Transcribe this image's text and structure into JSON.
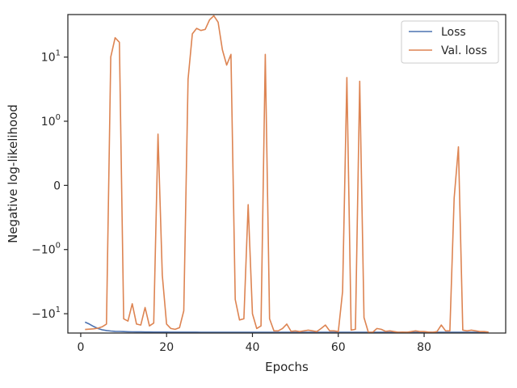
{
  "chart_data": {
    "type": "line",
    "title": "",
    "xlabel": "Epochs",
    "ylabel": "Negative log-likelihood",
    "yscale": "symlog",
    "xlim": [
      -3,
      99
    ],
    "ylim": [
      -20,
      46
    ],
    "x_ticks": [
      {
        "value": 0,
        "label": "0"
      },
      {
        "value": 20,
        "label": "20"
      },
      {
        "value": 40,
        "label": "40"
      },
      {
        "value": 60,
        "label": "60"
      },
      {
        "value": 80,
        "label": "80"
      }
    ],
    "y_ticks": [
      {
        "value": 10,
        "label": "10¹",
        "base": "10",
        "exp": "1",
        "sign": ""
      },
      {
        "value": 1,
        "label": "10⁰",
        "base": "10",
        "exp": "0",
        "sign": ""
      },
      {
        "value": 0,
        "label": "0",
        "base": "0",
        "exp": "",
        "sign": ""
      },
      {
        "value": -1,
        "label": "−10⁰",
        "base": "10",
        "exp": "0",
        "sign": "−"
      },
      {
        "value": -10,
        "label": "−10¹",
        "base": "10",
        "exp": "1",
        "sign": "−"
      }
    ],
    "grid": false,
    "legend_position": "top-right",
    "colors": {
      "Loss": "#4c72b0",
      "Val. loss": "#dd8452",
      "axes": "#262626"
    },
    "series": [
      {
        "name": "Loss",
        "x": [
          1,
          2,
          3,
          4,
          5,
          6,
          7,
          8,
          9,
          10,
          11,
          12,
          13,
          14,
          15,
          16,
          17,
          18,
          19,
          20,
          21,
          22,
          23,
          24,
          25,
          26,
          27,
          28,
          29,
          30,
          31,
          32,
          33,
          34,
          35,
          36,
          37,
          38,
          39,
          40,
          41,
          42,
          43,
          44,
          45,
          46,
          47,
          48,
          49,
          50,
          51,
          52,
          53,
          54,
          55,
          56,
          57,
          58,
          59,
          60,
          61,
          62,
          63,
          64,
          65,
          66,
          67,
          68,
          69,
          70,
          71,
          72,
          73,
          74,
          75,
          76,
          77,
          78,
          79,
          80,
          81,
          82,
          83,
          84,
          85,
          86,
          87,
          88,
          89,
          90,
          91,
          92,
          93,
          94,
          95
        ],
        "y": [
          -13.5,
          -14.5,
          -15.8,
          -17.0,
          -17.8,
          -18.3,
          -18.6,
          -18.8,
          -18.9,
          -19.0,
          -19.1,
          -19.15,
          -19.2,
          -19.22,
          -19.25,
          -19.27,
          -19.3,
          -19.3,
          -19.32,
          -19.33,
          -19.35,
          -19.35,
          -19.36,
          -19.37,
          -19.38,
          -19.38,
          -19.39,
          -19.4,
          -19.4,
          -19.4,
          -19.41,
          -19.41,
          -19.41,
          -19.42,
          -19.42,
          -19.42,
          -19.42,
          -19.43,
          -19.43,
          -19.43,
          -19.43,
          -19.43,
          -19.44,
          -19.44,
          -19.44,
          -19.44,
          -19.44,
          -19.44,
          -19.45,
          -19.45,
          -19.45,
          -19.45,
          -19.45,
          -19.45,
          -19.45,
          -19.45,
          -19.46,
          -19.46,
          -19.46,
          -19.46,
          -19.46,
          -19.46,
          -19.46,
          -19.46,
          -19.46,
          -19.46,
          -19.46,
          -19.46,
          -19.47,
          -19.47,
          -19.47,
          -19.47,
          -19.47,
          -19.47,
          -19.47,
          -19.47,
          -19.47,
          -19.47,
          -19.47,
          -19.47,
          -19.47,
          -19.47,
          -19.47,
          -19.47,
          -19.47,
          -19.47,
          -19.47,
          -19.47,
          -19.48,
          -19.48,
          -19.48,
          -19.48,
          -19.48,
          -19.48,
          -19.48
        ]
      },
      {
        "name": "Val. loss",
        "x": [
          1,
          2,
          3,
          4,
          5,
          6,
          7,
          8,
          9,
          10,
          11,
          12,
          13,
          14,
          15,
          16,
          17,
          18,
          19,
          20,
          21,
          22,
          23,
          24,
          25,
          26,
          27,
          28,
          29,
          30,
          31,
          32,
          33,
          34,
          35,
          36,
          37,
          38,
          39,
          40,
          41,
          42,
          43,
          44,
          45,
          46,
          47,
          48,
          49,
          50,
          51,
          52,
          53,
          54,
          55,
          56,
          57,
          58,
          59,
          60,
          61,
          62,
          63,
          64,
          65,
          66,
          67,
          68,
          69,
          70,
          71,
          72,
          73,
          74,
          75,
          76,
          77,
          78,
          79,
          80,
          81,
          82,
          83,
          84,
          85,
          86,
          87,
          88,
          89,
          90,
          91,
          92,
          93,
          94,
          95
        ],
        "y": [
          -17.6,
          -17.4,
          -17.2,
          -16.8,
          -16.0,
          -14.5,
          10.0,
          20.0,
          17.0,
          -12.0,
          -13.0,
          -7.0,
          -14.5,
          -15.0,
          -8.0,
          -15.5,
          -14.0,
          0.8,
          -2.5,
          -14.5,
          -17.0,
          -17.5,
          -16.5,
          -9.0,
          4.5,
          23.0,
          28.0,
          26.0,
          27.0,
          38.0,
          44.0,
          35.0,
          13.0,
          7.5,
          11.0,
          -6.0,
          -12.5,
          -12.0,
          -0.3,
          -10.0,
          -17.0,
          -15.5,
          11.0,
          -12.0,
          -18.5,
          -18.5,
          -17.0,
          -14.5,
          -18.8,
          -18.5,
          -19.0,
          -18.5,
          -18.0,
          -18.5,
          -19.0,
          -17.0,
          -15.0,
          -18.5,
          -18.5,
          -19.0,
          -4.5,
          4.8,
          -18.0,
          -17.5,
          4.2,
          -11.5,
          -19.5,
          -19.5,
          -17.0,
          -17.5,
          -18.8,
          -18.5,
          -19.0,
          -19.5,
          -19.3,
          -19.5,
          -19.0,
          -18.5,
          -19.0,
          -19.0,
          -19.3,
          -19.5,
          -19.0,
          -15.0,
          -18.5,
          -18.5,
          -0.2,
          0.6,
          -18.0,
          -18.5,
          -18.0,
          -18.5,
          -19.0,
          -19.0,
          -19.3
        ]
      }
    ]
  }
}
